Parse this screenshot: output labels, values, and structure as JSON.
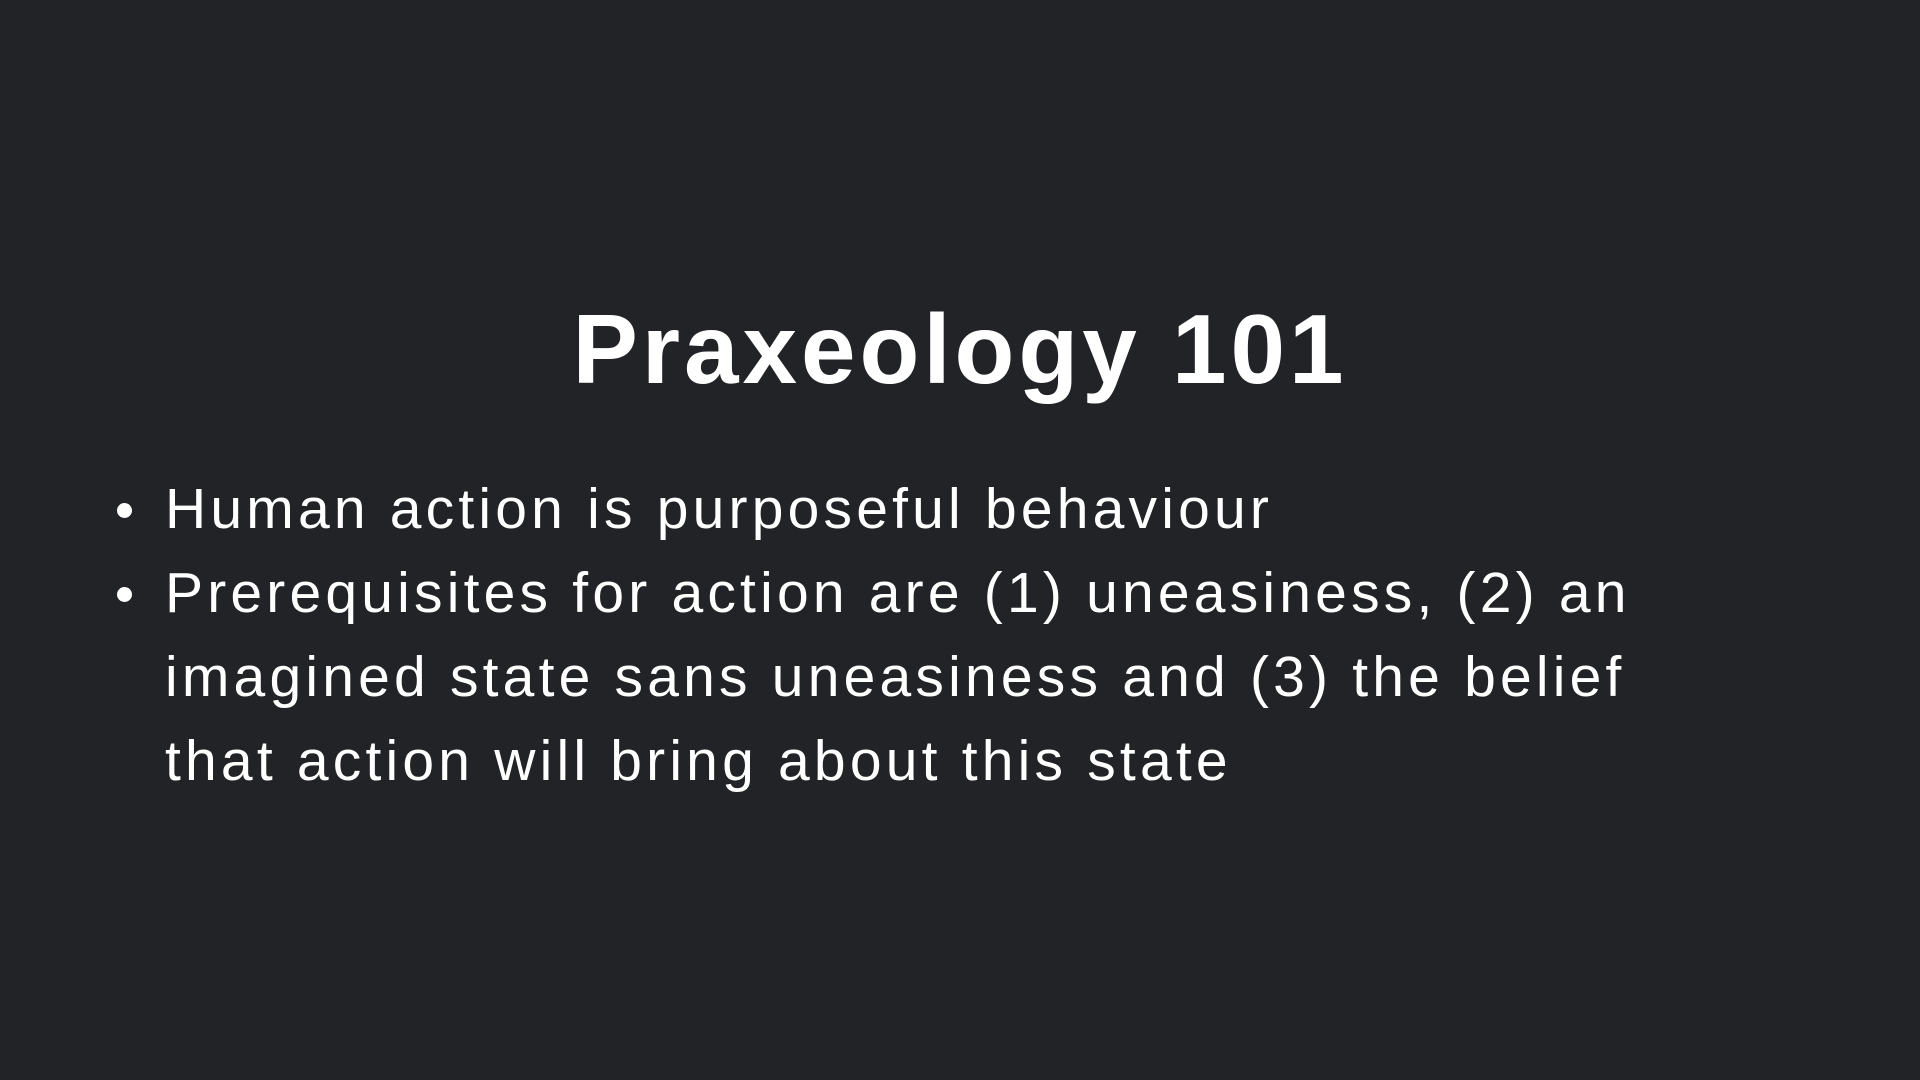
{
  "slide": {
    "title": "Praxeology 101",
    "bullets": [
      "Human action is purposeful behaviour",
      "Prerequisites for action are (1) uneasiness, (2) an imagined state sans uneasiness and (3) the belief that action will bring about this state"
    ],
    "colors": {
      "background": "#222327",
      "text": "#ffffff"
    }
  }
}
